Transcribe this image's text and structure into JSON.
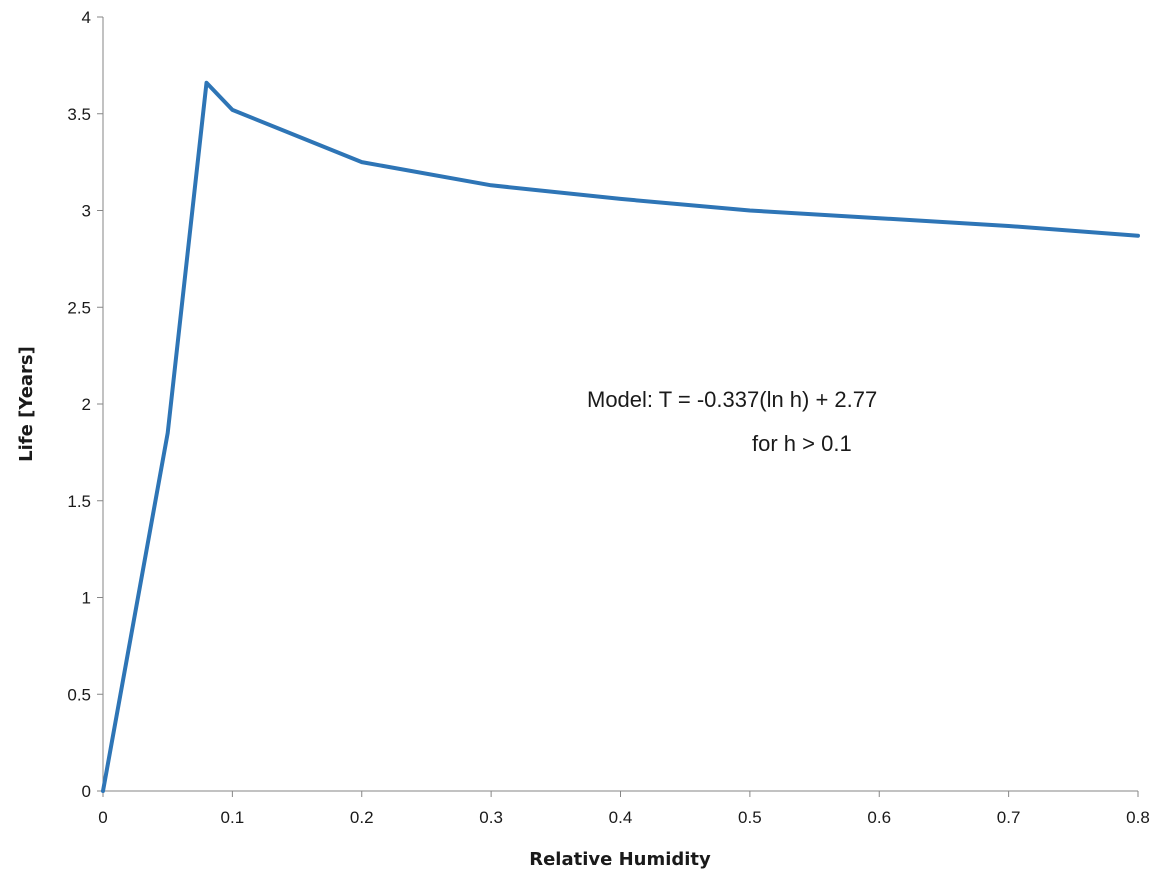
{
  "chart_data": {
    "type": "line",
    "title": "",
    "xlabel": "Relative Humidity",
    "ylabel": "Life [Years]",
    "xlim": [
      0,
      0.8
    ],
    "ylim": [
      0,
      4
    ],
    "x_ticks": [
      "0",
      "0.1",
      "0.2",
      "0.3",
      "0.4",
      "0.5",
      "0.6",
      "0.7",
      "0.8"
    ],
    "y_ticks": [
      "0",
      "0.5",
      "1",
      "1.5",
      "2",
      "2.5",
      "3",
      "3.5",
      "4"
    ],
    "grid": false,
    "legend": "none",
    "series": [
      {
        "color": "#2e75b6",
        "x": [
          0,
          0.05,
          0.08,
          0.1,
          0.2,
          0.3,
          0.4,
          0.5,
          0.6,
          0.7,
          0.8
        ],
        "y": [
          0,
          1.85,
          3.66,
          3.52,
          3.25,
          3.13,
          3.06,
          3.0,
          2.96,
          2.92,
          2.87
        ]
      }
    ],
    "annotations": [
      "Model:  T = -0.337(ln h) + 2.77",
      "for h > 0.1"
    ]
  }
}
